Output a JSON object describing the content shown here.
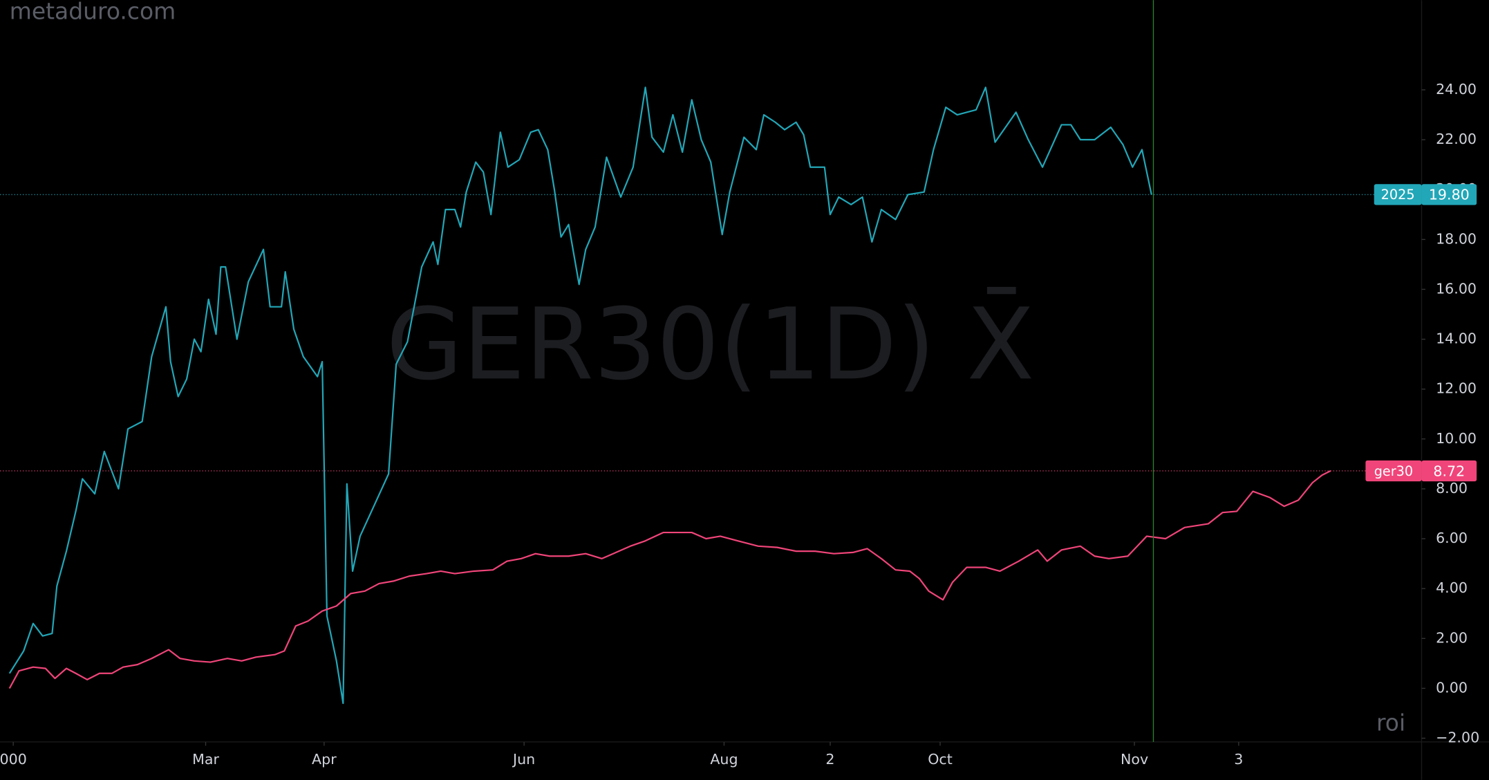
{
  "chart_data": {
    "type": "line",
    "watermark": "GER30(1D) X̄",
    "site": "metaduro.com",
    "indicator": "roi",
    "xlim": [
      0,
      300
    ],
    "ylim": [
      -2.15,
      27.6
    ],
    "xticks": [
      {
        "value": 2.8,
        "label": "000"
      },
      {
        "value": 43.4,
        "label": "Mar"
      },
      {
        "value": 68.4,
        "label": "Apr"
      },
      {
        "value": 110.6,
        "label": "Jun"
      },
      {
        "value": 152.8,
        "label": "Aug"
      },
      {
        "value": 175.2,
        "label": "2"
      },
      {
        "value": 198.4,
        "label": "Oct"
      },
      {
        "value": 239.4,
        "label": "Nov"
      },
      {
        "value": 261.4,
        "label": "3"
      }
    ],
    "yticks": [
      {
        "value": -2,
        "label": "−2.00"
      },
      {
        "value": 0,
        "label": "0.00"
      },
      {
        "value": 2,
        "label": "2.00"
      },
      {
        "value": 4,
        "label": "4.00"
      },
      {
        "value": 6,
        "label": "6.00"
      },
      {
        "value": 8,
        "label": "8.00"
      },
      {
        "value": 10,
        "label": "10.00"
      },
      {
        "value": 12,
        "label": "12.00"
      },
      {
        "value": 14,
        "label": "14.00"
      },
      {
        "value": 16,
        "label": "16.00"
      },
      {
        "value": 18,
        "label": "18.00"
      },
      {
        "value": 20,
        "label": "20.00"
      },
      {
        "value": 22,
        "label": "22.00"
      },
      {
        "value": 24,
        "label": "24.00"
      }
    ],
    "marker_x": 243.4,
    "marker_color": "#2e7d32",
    "series": [
      {
        "name": "2025",
        "color": "#22a7b8",
        "last_value_label": "19.80",
        "x": [
          2,
          5,
          7,
          9,
          11,
          12,
          14,
          16,
          17.4,
          20,
          22,
          25,
          27,
          30,
          32,
          35,
          36,
          37.6,
          39.4,
          41,
          42.4,
          44,
          45.6,
          46.6,
          47.6,
          50,
          52.4,
          55.6,
          57,
          59.4,
          60.2,
          62,
          64,
          67,
          68,
          69,
          71,
          72.4,
          73.2,
          74.4,
          76,
          78.4,
          82,
          83.6,
          86,
          89,
          91.4,
          92.4,
          94,
          96,
          97.2,
          98.4,
          100.4,
          102,
          103.6,
          105.6,
          107.2,
          109.6,
          112,
          113.6,
          115.6,
          117,
          118.4,
          120,
          122.2,
          123.6,
          125.6,
          128,
          131,
          133.6,
          136.2,
          137.6,
          140,
          142,
          144,
          146,
          148,
          150,
          152.4,
          154,
          157,
          159.6,
          161.2,
          163.6,
          165.6,
          168,
          169.6,
          171,
          174,
          175.2,
          177,
          179.6,
          182,
          184,
          186,
          189,
          191.6,
          195,
          197,
          199.6,
          202,
          206,
          208,
          210,
          214.4,
          217,
          220,
          224,
          226,
          228,
          231,
          234.4,
          237,
          239,
          241,
          243
        ],
        "values": [
          0.6,
          1.5,
          2.6,
          2.1,
          2.2,
          4.1,
          5.5,
          7.1,
          8.4,
          7.8,
          9.5,
          8.0,
          10.4,
          10.7,
          13.3,
          15.3,
          13.1,
          11.7,
          12.4,
          14.0,
          13.5,
          15.6,
          14.2,
          16.9,
          16.9,
          14.0,
          16.3,
          17.6,
          15.3,
          15.3,
          16.7,
          14.4,
          13.3,
          12.5,
          13.1,
          2.9,
          1.1,
          -0.6,
          8.2,
          4.7,
          6.1,
          7.1,
          8.6,
          13.0,
          13.9,
          16.9,
          17.9,
          17.0,
          19.2,
          19.2,
          18.5,
          19.9,
          21.1,
          20.7,
          19.0,
          22.3,
          20.9,
          21.2,
          22.3,
          22.4,
          21.6,
          20.0,
          18.1,
          18.6,
          16.2,
          17.6,
          18.5,
          21.3,
          19.7,
          20.9,
          24.1,
          22.1,
          21.5,
          23.0,
          21.5,
          23.6,
          22.0,
          21.1,
          18.2,
          19.9,
          22.1,
          21.6,
          23.0,
          22.7,
          22.4,
          22.7,
          22.2,
          20.9,
          20.9,
          19.0,
          19.7,
          19.4,
          19.7,
          17.9,
          19.2,
          18.8,
          19.8,
          19.9,
          21.6,
          23.3,
          23.0,
          23.2,
          24.1,
          21.9,
          23.1,
          22.0,
          20.9,
          22.6,
          22.6,
          22.0,
          22.0,
          22.5,
          21.8,
          20.9,
          21.6,
          19.8
        ]
      },
      {
        "name": "ger30",
        "color": "#f0457a",
        "last_value_label": "8.72",
        "x": [
          2,
          4,
          7,
          9.6,
          11.6,
          14,
          16,
          18.4,
          21,
          23.6,
          26,
          29,
          32,
          35.6,
          38,
          41,
          44.4,
          48,
          51,
          54,
          58,
          60,
          62.4,
          65,
          68,
          71,
          74,
          77,
          80,
          83,
          86.4,
          90,
          93,
          96,
          100,
          104,
          107,
          110,
          113,
          116,
          120,
          123.6,
          127,
          130,
          133,
          136,
          140,
          143,
          146,
          149,
          152,
          156,
          160,
          164,
          168,
          172,
          176,
          180,
          183,
          186,
          189,
          192,
          194,
          196,
          199,
          201,
          204,
          208,
          211,
          215,
          219,
          221,
          224,
          228,
          231,
          234,
          238,
          242,
          246,
          250,
          255,
          258,
          261,
          264.4,
          268,
          271,
          274,
          277,
          279,
          280.8
        ],
        "values": [
          0.0,
          0.7,
          0.85,
          0.8,
          0.4,
          0.8,
          0.6,
          0.35,
          0.6,
          0.6,
          0.85,
          0.95,
          1.2,
          1.55,
          1.2,
          1.1,
          1.05,
          1.2,
          1.1,
          1.25,
          1.35,
          1.5,
          2.5,
          2.7,
          3.1,
          3.3,
          3.8,
          3.9,
          4.2,
          4.3,
          4.5,
          4.6,
          4.7,
          4.6,
          4.7,
          4.75,
          5.1,
          5.2,
          5.4,
          5.3,
          5.3,
          5.4,
          5.2,
          5.45,
          5.7,
          5.9,
          6.25,
          6.25,
          6.25,
          6.0,
          6.1,
          5.9,
          5.7,
          5.65,
          5.5,
          5.5,
          5.4,
          5.45,
          5.6,
          5.2,
          4.75,
          4.7,
          4.4,
          3.9,
          3.55,
          4.25,
          4.85,
          4.85,
          4.7,
          5.1,
          5.55,
          5.1,
          5.55,
          5.7,
          5.3,
          5.2,
          5.3,
          6.1,
          6.0,
          6.45,
          6.6,
          7.05,
          7.1,
          7.9,
          7.65,
          7.3,
          7.55,
          8.25,
          8.55,
          8.72
        ]
      }
    ]
  }
}
